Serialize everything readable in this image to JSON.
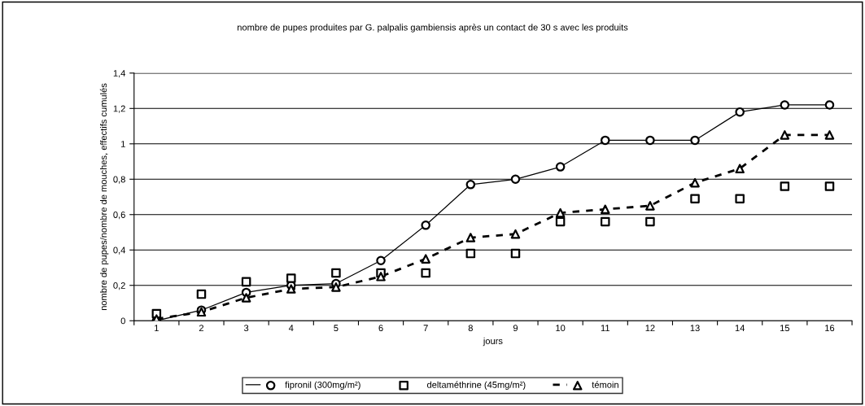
{
  "chart_data": {
    "type": "line",
    "title": "nombre de pupes produites par G. palpalis gambiensis après un contact de 30 s avec les produits",
    "xlabel": "jours",
    "ylabel": "nombre de pupes/nombre de mouches, effectifs cumulés",
    "categories": [
      "1",
      "2",
      "3",
      "4",
      "5",
      "6",
      "7",
      "8",
      "9",
      "10",
      "11",
      "12",
      "13",
      "14",
      "15",
      "16"
    ],
    "series": [
      {
        "name": "fipronil (300mg/m²)",
        "color": "#000000",
        "marker": "circle",
        "line_style": "solid",
        "values": [
          0,
          0.06,
          0.16,
          0.2,
          0.21,
          0.34,
          0.54,
          0.77,
          0.8,
          0.87,
          1.02,
          1.02,
          1.02,
          1.18,
          1.22,
          1.22
        ]
      },
      {
        "name": "deltaméthrine (45mg/m²)",
        "type": "scatter",
        "color": "#000000",
        "marker": "square",
        "values": [
          0.04,
          0.15,
          0.22,
          0.24,
          0.27,
          0.27,
          0.27,
          0.38,
          0.38,
          0.56,
          0.56,
          0.56,
          0.69,
          0.69,
          0.76,
          0.76
        ]
      },
      {
        "name": "témoin",
        "color": "#000000",
        "marker": "triangle",
        "line_style": "dashed",
        "values": [
          0.01,
          0.05,
          0.13,
          0.18,
          0.19,
          0.25,
          0.35,
          0.47,
          0.49,
          0.61,
          0.63,
          0.65,
          0.78,
          0.86,
          1.05,
          1.05
        ]
      }
    ],
    "ylim": [
      0,
      1.4
    ],
    "yticks": [
      0,
      {
        "value": 0.2,
        "label": "0,2"
      },
      {
        "value": 0.4,
        "label": "0,4"
      },
      {
        "value": 0.6,
        "label": "0,6"
      },
      {
        "value": 0.8,
        "label": "0,8"
      },
      1,
      {
        "value": 1.2,
        "label": "1,2"
      },
      {
        "value": 1.4,
        "label": "1,4"
      }
    ],
    "grid": "y",
    "legend": "bottom"
  }
}
